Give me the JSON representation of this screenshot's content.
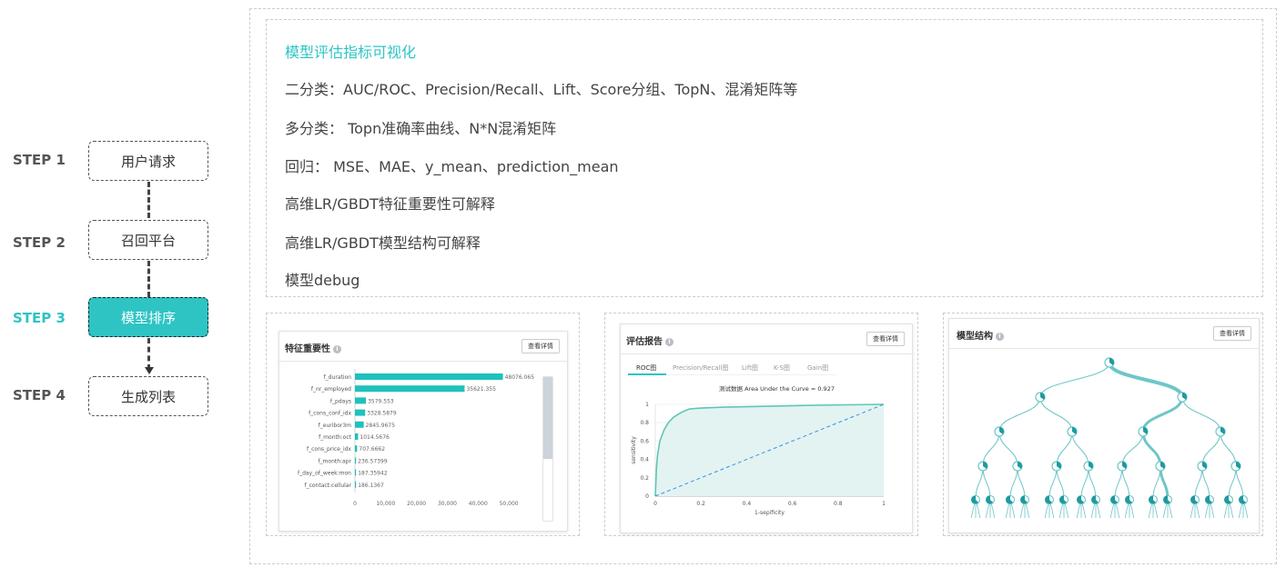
{
  "steps": [
    {
      "label": "STEP 1",
      "box": "用户请求"
    },
    {
      "label": "STEP 2",
      "box": "召回平台"
    },
    {
      "label": "STEP 3",
      "box": "模型排序"
    },
    {
      "label": "STEP 4",
      "box": "生成列表"
    }
  ],
  "colors": {
    "accent": "#2ec4c4",
    "bar": "#1fc1bd",
    "roc": "#5cc8b4",
    "diag": "#3b8fe0"
  },
  "features": {
    "title": "模型评估指标可视化",
    "items": [
      "二分类：AUC/ROC、Precision/Recall、Lift、Score分组、TopN、混淆矩阵等",
      "多分类： Topn准确率曲线、N*N混淆矩阵",
      "回归： MSE、MAE、y_mean、prediction_mean",
      "高维LR/GBDT特征重要性可解释",
      "高维LR/GBDT模型结构可解释",
      "模型debug"
    ]
  },
  "panels": {
    "importance": {
      "title": "特征重要性",
      "button": "查看详情",
      "info_icon": "info-icon"
    },
    "report": {
      "title": "评估报告",
      "button": "查看详情",
      "tabs": [
        "ROC图",
        "Precision/Recall图",
        "Lift图",
        "K-S图",
        "Gain图"
      ],
      "active_tab": 0
    },
    "structure": {
      "title": "模型结构",
      "button": "查看详情"
    }
  },
  "chart_data": [
    {
      "type": "bar",
      "orientation": "horizontal",
      "categories": [
        "f_duration",
        "f_nr_employed",
        "f_pdays",
        "f_cons_conf_idx",
        "f_euribor3m",
        "f_month:oct",
        "f_cons_price_idx",
        "f_month:apr",
        "f_day_of_week:mon",
        "f_contact:cellular"
      ],
      "values": [
        48076.065,
        35621.355,
        3579.553,
        3328.5879,
        2845.9675,
        1014.5676,
        707.6662,
        236.57399,
        187.35942,
        186.1367
      ],
      "value_labels": [
        "48076.065",
        "35621.355",
        "3579.553",
        "3328.5879",
        "2845.9675",
        "1014.5676",
        "707.6662",
        "236.57399",
        "187.35942",
        "186.1367"
      ],
      "xticks": [
        "0",
        "10,000",
        "20,000",
        "30,000",
        "40,000",
        "50,000"
      ],
      "xlim": [
        0,
        55000
      ]
    },
    {
      "type": "area",
      "title": "测试数据 Area Under the Curve = 0.927",
      "xlabel": "1-sepificity",
      "ylabel": "sensitivity",
      "xticks": [
        "0",
        "0.2",
        "0.4",
        "0.6",
        "0.8",
        "1"
      ],
      "yticks": [
        "0",
        "0.2",
        "0.4",
        "0.6",
        "0.8",
        "1"
      ],
      "xlim": [
        0,
        1
      ],
      "ylim": [
        0,
        1
      ],
      "x": [
        0,
        0.005,
        0.01,
        0.02,
        0.04,
        0.06,
        0.08,
        0.1,
        0.12,
        0.15,
        0.2,
        0.3,
        0.5,
        0.7,
        1
      ],
      "y": [
        0,
        0.3,
        0.45,
        0.6,
        0.73,
        0.81,
        0.86,
        0.89,
        0.92,
        0.95,
        0.96,
        0.97,
        0.98,
        0.99,
        1
      ],
      "diagonal": true
    }
  ]
}
